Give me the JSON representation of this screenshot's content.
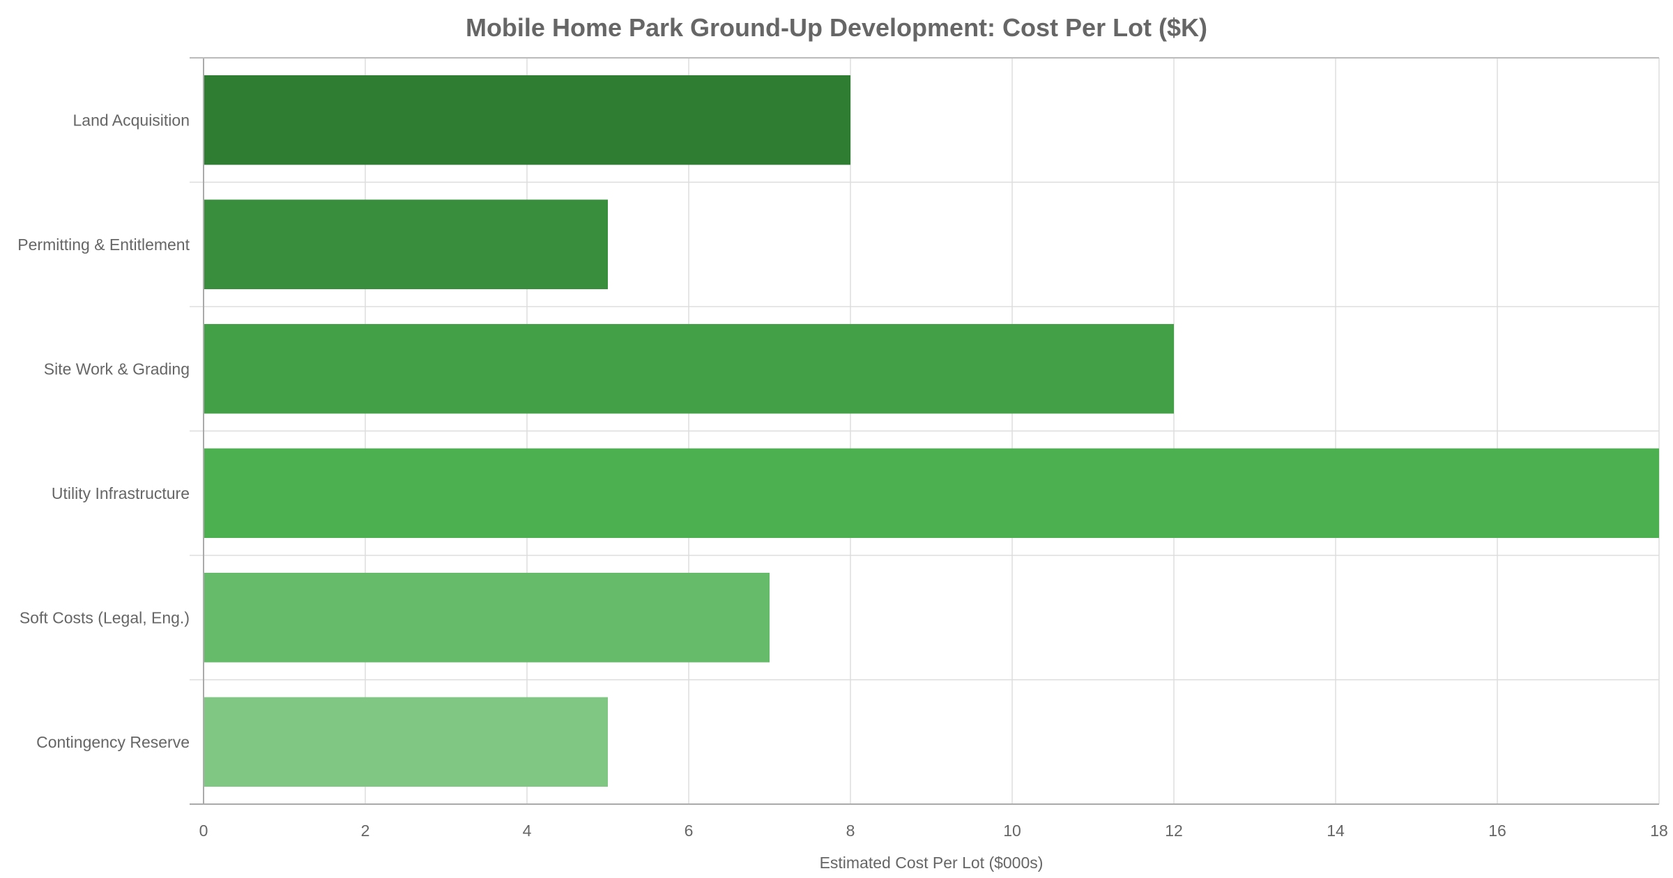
{
  "chart_data": {
    "type": "bar",
    "orientation": "horizontal",
    "title": "Mobile Home Park Ground-Up Development: Cost Per Lot ($K)",
    "xlabel": "Estimated Cost Per Lot ($000s)",
    "ylabel": "",
    "categories": [
      "Land Acquisition",
      "Permitting & Entitlement",
      "Site Work & Grading",
      "Utility Infrastructure",
      "Soft Costs (Legal, Eng.)",
      "Contingency Reserve"
    ],
    "values": [
      8,
      5,
      12,
      18,
      7,
      5
    ],
    "colors": [
      "#2e7d32",
      "#388e3c",
      "#43a047",
      "#4caf50",
      "#66bb6a",
      "#81c784"
    ],
    "xlim": [
      0,
      18
    ],
    "xticks": [
      0,
      2,
      4,
      6,
      8,
      10,
      12,
      14,
      16,
      18
    ],
    "grid": true,
    "legend": "none"
  }
}
